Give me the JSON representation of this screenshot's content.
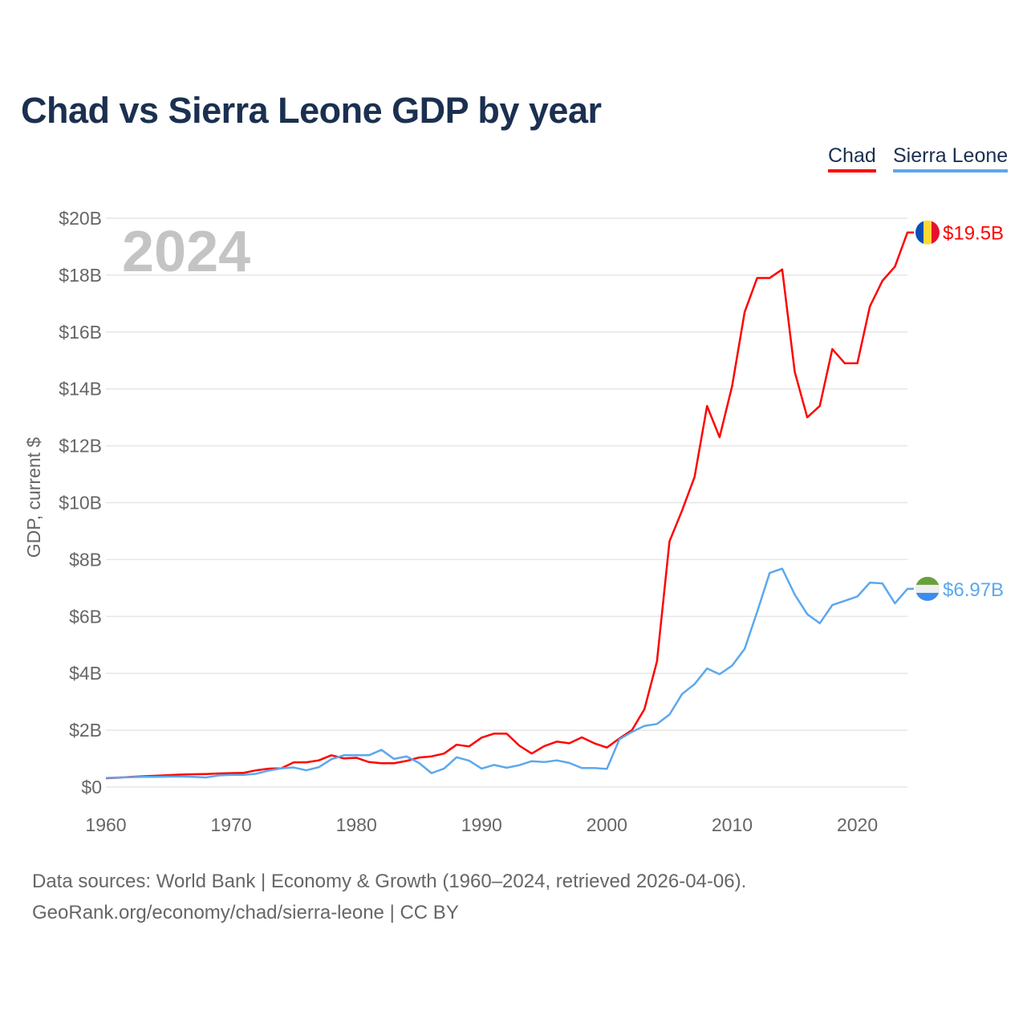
{
  "title": "Chad vs Sierra Leone GDP by year",
  "footer": {
    "line1": "Data sources: World Bank | Economy & Growth (1960–2024, retrieved 2026-04-06).",
    "line2": "GeoRank.org/economy/chad/sierra-leone | CC BY"
  },
  "chart_data": {
    "type": "line",
    "title": "Chad vs Sierra Leone GDP by year",
    "ylabel": "GDP, current $",
    "xlabel": "",
    "year_label": "2024",
    "ylim": [
      0,
      20
    ],
    "xlim": [
      1960,
      2024
    ],
    "yticks": [
      0,
      2,
      4,
      6,
      8,
      10,
      12,
      14,
      16,
      18,
      20
    ],
    "ytick_labels": [
      "$0",
      "$2B",
      "$4B",
      "$6B",
      "$8B",
      "$10B",
      "$12B",
      "$14B",
      "$16B",
      "$18B",
      "$20B"
    ],
    "xticks": [
      1960,
      1970,
      1980,
      1990,
      2000,
      2010,
      2020
    ],
    "xtick_labels": [
      "1960",
      "1970",
      "1980",
      "1990",
      "2000",
      "2010",
      "2020"
    ],
    "grid": true,
    "legend_position": "top-right",
    "x": [
      1960,
      1961,
      1962,
      1963,
      1964,
      1965,
      1966,
      1967,
      1968,
      1969,
      1970,
      1971,
      1972,
      1973,
      1974,
      1975,
      1976,
      1977,
      1978,
      1979,
      1980,
      1981,
      1982,
      1983,
      1984,
      1985,
      1986,
      1987,
      1988,
      1989,
      1990,
      1991,
      1992,
      1993,
      1994,
      1995,
      1996,
      1997,
      1998,
      1999,
      2000,
      2001,
      2002,
      2003,
      2004,
      2005,
      2006,
      2007,
      2008,
      2009,
      2010,
      2011,
      2012,
      2013,
      2014,
      2015,
      2016,
      2017,
      2018,
      2019,
      2020,
      2021,
      2022,
      2023,
      2024
    ],
    "series": [
      {
        "name": "Chad",
        "color": "#ff0000",
        "end_label": "$19.5B",
        "flag": "chad-flag",
        "values": [
          0.31,
          0.33,
          0.36,
          0.38,
          0.4,
          0.42,
          0.44,
          0.45,
          0.46,
          0.48,
          0.49,
          0.5,
          0.59,
          0.65,
          0.66,
          0.87,
          0.87,
          0.94,
          1.12,
          1.01,
          1.03,
          0.88,
          0.84,
          0.84,
          0.92,
          1.04,
          1.08,
          1.18,
          1.49,
          1.43,
          1.74,
          1.88,
          1.88,
          1.46,
          1.18,
          1.44,
          1.6,
          1.54,
          1.75,
          1.54,
          1.39,
          1.71,
          2.0,
          2.74,
          4.42,
          8.64,
          9.72,
          10.9,
          13.4,
          12.3,
          14.1,
          16.7,
          17.9,
          17.9,
          18.2,
          14.6,
          13.0,
          13.4,
          15.4,
          14.9,
          14.9,
          16.9,
          17.8,
          18.3,
          19.5
        ]
      },
      {
        "name": "Sierra Leone",
        "color": "#5ba8ee",
        "end_label": "$6.97B",
        "flag": "sierra-leone-flag",
        "values": [
          0.32,
          0.34,
          0.35,
          0.36,
          0.36,
          0.37,
          0.37,
          0.36,
          0.34,
          0.41,
          0.43,
          0.43,
          0.47,
          0.58,
          0.66,
          0.69,
          0.59,
          0.7,
          0.98,
          1.12,
          1.12,
          1.12,
          1.31,
          0.99,
          1.08,
          0.85,
          0.49,
          0.65,
          1.05,
          0.93,
          0.65,
          0.78,
          0.68,
          0.77,
          0.91,
          0.88,
          0.94,
          0.85,
          0.67,
          0.67,
          0.64,
          1.68,
          1.94,
          2.15,
          2.22,
          2.55,
          3.27,
          3.62,
          4.17,
          3.97,
          4.27,
          4.86,
          6.16,
          7.53,
          7.68,
          6.77,
          6.08,
          5.76,
          6.4,
          6.55,
          6.7,
          7.19,
          7.16,
          6.46,
          6.97
        ]
      }
    ]
  }
}
